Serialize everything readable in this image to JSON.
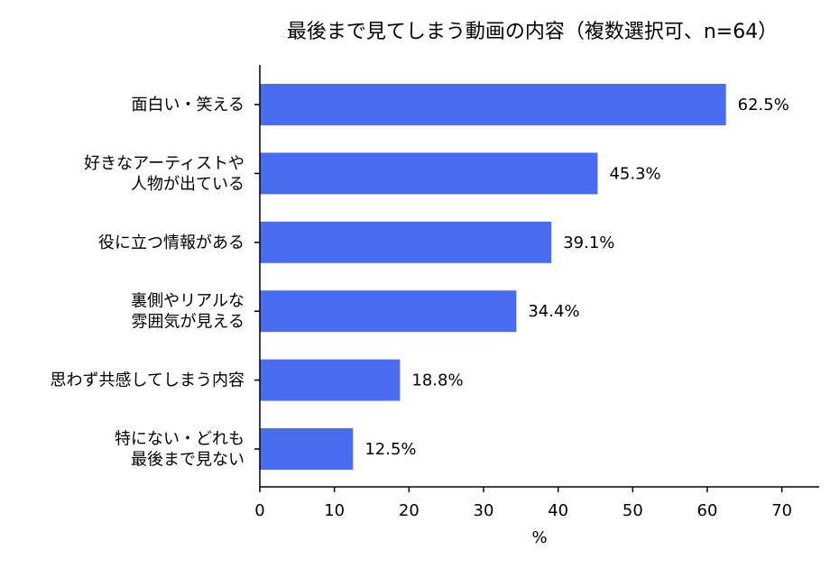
{
  "chart_data": {
    "type": "bar",
    "orientation": "horizontal",
    "title": "最後まで見てしまう動画の内容（複数選択可、n=64）",
    "categories": [
      "面白い・笑える",
      "好きなアーティストや\n人物が出ている",
      "役に立つ情報がある",
      "裏側やリアルな\n雰囲気が見える",
      "思わず共感してしまう内容",
      "特にない・どれも\n最後まで見ない"
    ],
    "values": [
      62.5,
      45.3,
      39.1,
      34.4,
      18.8,
      12.5
    ],
    "value_labels": [
      "62.5%",
      "45.3%",
      "39.1%",
      "34.4%",
      "18.8%",
      "12.5%"
    ],
    "xlabel": "%",
    "ylabel": "",
    "xlim": [
      0,
      75
    ],
    "xticks": [
      0,
      10,
      20,
      30,
      40,
      50,
      60,
      70
    ],
    "grid": false,
    "bar_color": "#4a6cf0"
  }
}
